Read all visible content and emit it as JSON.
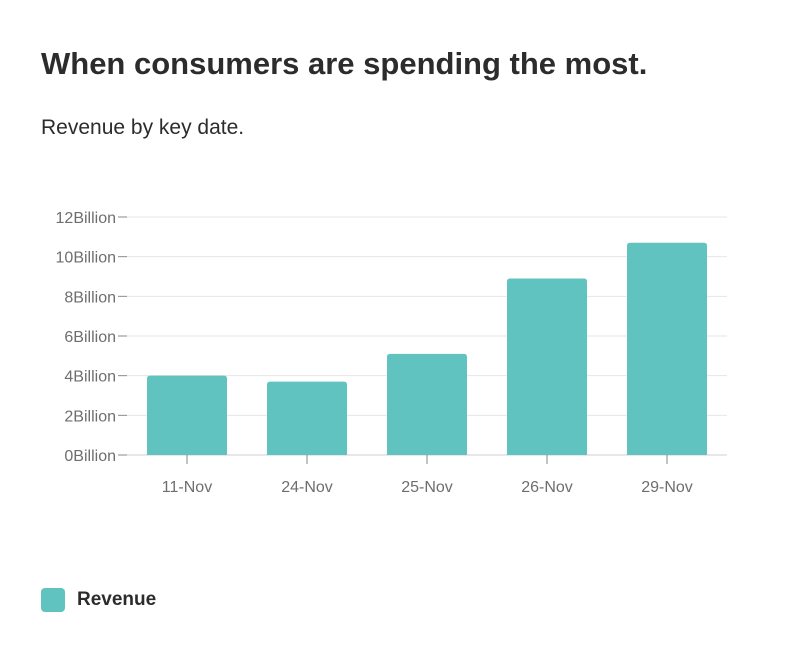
{
  "header": {
    "title": "When consumers are spending the most.",
    "subtitle": "Revenue by key date."
  },
  "legend": {
    "items": [
      {
        "label": "Revenue",
        "color": "#61c3c0"
      }
    ]
  },
  "chart_data": {
    "type": "bar",
    "categories": [
      "11-Nov",
      "24-Nov",
      "25-Nov",
      "26-Nov",
      "29-Nov"
    ],
    "series": [
      {
        "name": "Revenue",
        "values": [
          4.0,
          3.7,
          5.1,
          8.9,
          10.7
        ],
        "color": "#61c3c0"
      }
    ],
    "unit_multiplier": "Billion",
    "ylim": [
      0,
      12
    ],
    "yticks": [
      0,
      2,
      4,
      6,
      8,
      10,
      12
    ],
    "ytick_labels": [
      "0Billion",
      "2Billion",
      "4Billion",
      "6Billion",
      "8Billion",
      "10Billion",
      "12Billion"
    ],
    "grid": true,
    "title": "When consumers are spending the most.",
    "subtitle": "Revenue by key date.",
    "xlabel": "",
    "ylabel": "",
    "legend_position": "bottom-left"
  }
}
